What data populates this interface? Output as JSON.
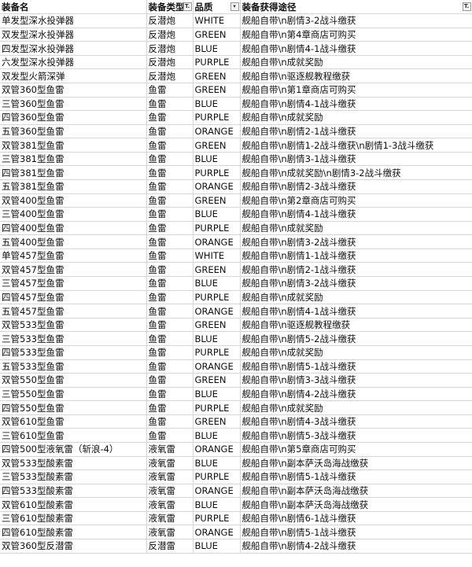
{
  "headers": [
    "装备名",
    "装备类型",
    "品质",
    "装备获得途径"
  ],
  "filter_icons": [
    "filter-active-icon",
    "dropdown-icon",
    "filter-active-icon"
  ],
  "rows": [
    [
      "单发型深水投弹器",
      "反潜炮",
      "WHITE",
      "舰船自带\\n剧情3-2战斗缴获"
    ],
    [
      "双发型深水投弹器",
      "反潜炮",
      "GREEN",
      "舰船自带\\n第4章商店可购买"
    ],
    [
      "四发型深水投弹器",
      "反潜炮",
      "BLUE",
      "舰船自带\\n剧情4-1战斗缴获"
    ],
    [
      "六发型深水投弹器",
      "反潜炮",
      "PURPLE",
      "舰船自带\\n成就奖励"
    ],
    [
      "双发型火箭深弹",
      "反潜炮",
      "GREEN",
      "舰船自带\\n驱逐舰教程缴获"
    ],
    [
      "双管360型鱼雷",
      "鱼雷",
      "GREEN",
      "舰船自带\\n第1章商店可购买"
    ],
    [
      "三管360型鱼雷",
      "鱼雷",
      "BLUE",
      "舰船自带\\n剧情4-1战斗缴获"
    ],
    [
      "四管360型鱼雷",
      "鱼雷",
      "PURPLE",
      "舰船自带\\n成就奖励"
    ],
    [
      "五管360型鱼雷",
      "鱼雷",
      "ORANGE",
      "舰船自带\\n剧情2-1战斗缴获"
    ],
    [
      "双管381型鱼雷",
      "鱼雷",
      "GREEN",
      "舰船自带\\n剧情1-2战斗缴获\\n剧情1-3战斗缴获"
    ],
    [
      "三管381型鱼雷",
      "鱼雷",
      "BLUE",
      "舰船自带\\n剧情3-1战斗缴获"
    ],
    [
      "四管381型鱼雷",
      "鱼雷",
      "PURPLE",
      "舰船自带\\n成就奖励\\n剧情3-2战斗缴获"
    ],
    [
      "五管381型鱼雷",
      "鱼雷",
      "ORANGE",
      "舰船自带\\n剧情2-3战斗缴获"
    ],
    [
      "双管400型鱼雷",
      "鱼雷",
      "GREEN",
      "舰船自带\\n第2章商店可购买"
    ],
    [
      "三管400型鱼雷",
      "鱼雷",
      "BLUE",
      "舰船自带\\n剧情4-1战斗缴获"
    ],
    [
      "四管400型鱼雷",
      "鱼雷",
      "PURPLE",
      "舰船自带\\n成就奖励"
    ],
    [
      "五管400型鱼雷",
      "鱼雷",
      "ORANGE",
      "舰船自带\\n剧情3-2战斗缴获"
    ],
    [
      "单管457型鱼雷",
      "鱼雷",
      "WHITE",
      "舰船自带\\n剧情1-1战斗缴获"
    ],
    [
      "双管457型鱼雷",
      "鱼雷",
      "GREEN",
      "舰船自带\\n剧情2-1战斗缴获"
    ],
    [
      "三管457型鱼雷",
      "鱼雷",
      "BLUE",
      "舰船自带\\n剧情3-2战斗缴获"
    ],
    [
      "四管457型鱼雷",
      "鱼雷",
      "PURPLE",
      "舰船自带\\n成就奖励"
    ],
    [
      "五管457型鱼雷",
      "鱼雷",
      "ORANGE",
      "舰船自带\\n剧情4-1战斗缴获"
    ],
    [
      "双管533型鱼雷",
      "鱼雷",
      "GREEN",
      "舰船自带\\n驱逐舰教程缴获"
    ],
    [
      "三管533型鱼雷",
      "鱼雷",
      "BLUE",
      "舰船自带\\n剧情5-2战斗缴获"
    ],
    [
      "四管533型鱼雷",
      "鱼雷",
      "PURPLE",
      "舰船自带\\n成就奖励"
    ],
    [
      "五管533型鱼雷",
      "鱼雷",
      "ORANGE",
      "舰船自带\\n剧情5-1战斗缴获"
    ],
    [
      "双管550型鱼雷",
      "鱼雷",
      "GREEN",
      "舰船自带\\n剧情3-3战斗缴获"
    ],
    [
      "三管550型鱼雷",
      "鱼雷",
      "BLUE",
      "舰船自带\\n剧情4-2战斗缴获"
    ],
    [
      "四管550型鱼雷",
      "鱼雷",
      "PURPLE",
      "舰船自带\\n成就奖励"
    ],
    [
      "双管610型鱼雷",
      "鱼雷",
      "GREEN",
      "舰船自带\\n剧情4-3战斗缴获"
    ],
    [
      "三管610型鱼雷",
      "鱼雷",
      "BLUE",
      "舰船自带\\n剧情5-3战斗缴获"
    ],
    [
      "四管500型液氧雷（斩浪-4）",
      "液氧雷",
      "ORANGE",
      "舰船自带\\n第5章商店可购买"
    ],
    [
      "双管533型酸素雷",
      "液氧雷",
      "BLUE",
      "舰船自带\\n副本萨沃岛海战缴获"
    ],
    [
      "三管533型酸素雷",
      "液氧雷",
      "PURPLE",
      "舰船自带\\n剧情5-1战斗缴获"
    ],
    [
      "四管533型酸素雷",
      "液氧雷",
      "ORANGE",
      "舰船自带\\n副本萨沃岛海战缴获"
    ],
    [
      "双管610型酸素雷",
      "液氧雷",
      "BLUE",
      "舰船自带\\n副本萨沃岛海战缴获"
    ],
    [
      "三管610型酸素雷",
      "液氧雷",
      "PURPLE",
      "舰船自带\\n剧情6-1战斗缴获"
    ],
    [
      "四管610型酸素雷",
      "液氧雷",
      "ORANGE",
      "舰船自带\\n剧情5-1战斗缴获"
    ],
    [
      "双管360型反潜雷",
      "反潜雷",
      "BLUE",
      "舰船自带\\n剧情4-2战斗缴获"
    ]
  ]
}
